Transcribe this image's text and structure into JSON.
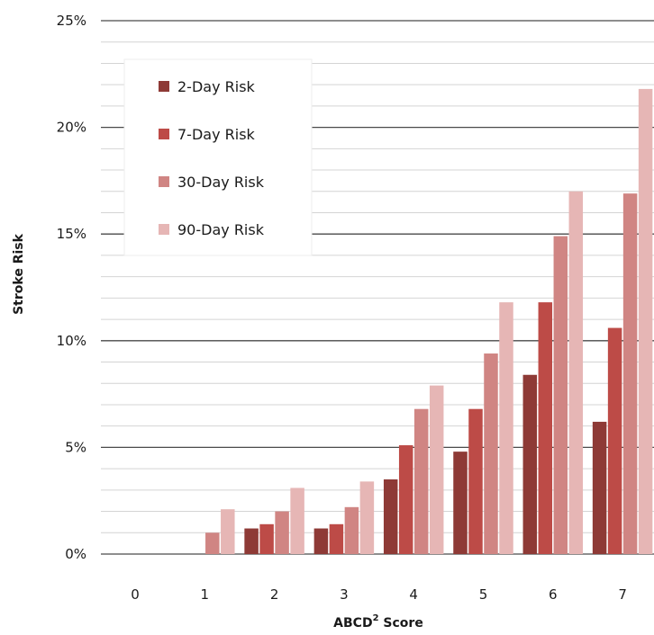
{
  "chart_data": {
    "type": "bar",
    "xlabel": "ABCD",
    "xlabel_sup": "2",
    "xlabel_suffix": " Score",
    "ylabel": "Stroke Risk",
    "ylim": [
      0,
      25
    ],
    "yticks": [
      "0%",
      "5%",
      "10%",
      "15%",
      "20%",
      "25%"
    ],
    "categories": [
      "0",
      "1",
      "2",
      "3",
      "4",
      "5",
      "6",
      "7"
    ],
    "grid": true,
    "legend": "top-left",
    "series": [
      {
        "name": "2-Day Risk",
        "color": "#8e3a36",
        "values": [
          0,
          0,
          1.2,
          1.2,
          3.5,
          4.8,
          8.4,
          6.2
        ]
      },
      {
        "name": "7-Day Risk",
        "color": "#bd4b47",
        "values": [
          0,
          0,
          1.4,
          1.4,
          5.1,
          6.8,
          11.8,
          10.6
        ]
      },
      {
        "name": "30-Day Risk",
        "color": "#d08583",
        "values": [
          0,
          1.0,
          2.0,
          2.2,
          6.8,
          9.4,
          14.9,
          16.9
        ]
      },
      {
        "name": "90-Day Risk",
        "color": "#e6b6b5",
        "values": [
          0,
          2.1,
          3.1,
          3.4,
          7.9,
          11.8,
          17.0,
          21.8
        ]
      }
    ]
  }
}
